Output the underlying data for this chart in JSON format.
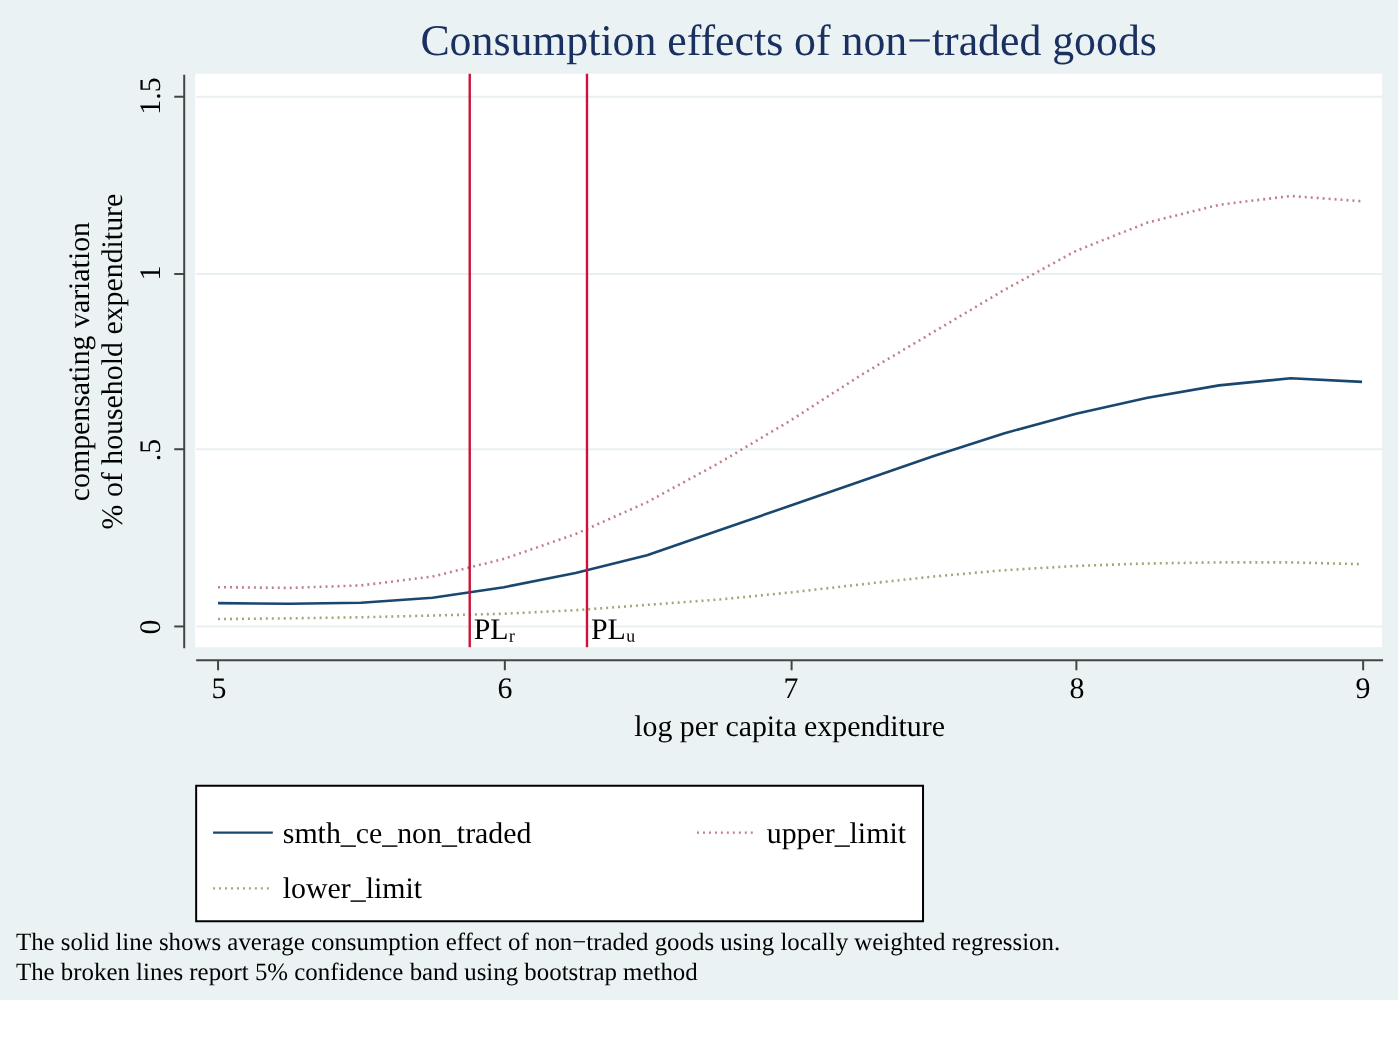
{
  "chart_data": {
    "type": "line",
    "title": "Consumption effects of non−traded goods",
    "xlabel": "log per capita expenditure",
    "ylabel": "compensating variation\n% of household expenditure",
    "xlim": [
      4.92,
      9.07
    ],
    "ylim": [
      -0.06,
      1.56
    ],
    "xticks": [
      5,
      6,
      7,
      8,
      9
    ],
    "yticks": [
      0,
      {
        "value": 0.5,
        "label": ".5"
      },
      1,
      1.5
    ],
    "grid": "y",
    "legend": "bottom",
    "marker": "none",
    "series": [
      {
        "name": "smth_ce_non_traded",
        "color": "#1a476f",
        "line_style": "solid",
        "x": [
          5,
          5.25,
          5.5,
          5.75,
          6,
          6.25,
          6.5,
          6.75,
          7,
          7.25,
          7.5,
          7.75,
          8,
          8.25,
          8.5,
          8.75,
          9
        ],
        "values": [
          0.065,
          0.063,
          0.066,
          0.08,
          0.11,
          0.15,
          0.2,
          0.27,
          0.34,
          0.41,
          0.48,
          0.545,
          0.6,
          0.645,
          0.68,
          0.7,
          0.69
        ]
      },
      {
        "name": "upper_limit",
        "color": "#c0808a",
        "line_style": "dotted",
        "x": [
          5,
          5.25,
          5.5,
          5.75,
          6,
          6.25,
          6.5,
          6.75,
          7,
          7.25,
          7.5,
          7.75,
          8,
          8.25,
          8.5,
          8.75,
          9
        ],
        "values": [
          0.11,
          0.108,
          0.115,
          0.14,
          0.19,
          0.26,
          0.35,
          0.46,
          0.58,
          0.71,
          0.83,
          0.95,
          1.06,
          1.14,
          1.19,
          1.215,
          1.2
        ]
      },
      {
        "name": "lower_limit",
        "color": "#a0a878",
        "line_style": "dotted",
        "x": [
          5,
          5.25,
          5.5,
          5.75,
          6,
          6.25,
          6.5,
          6.75,
          7,
          7.25,
          7.5,
          7.75,
          8,
          8.25,
          8.5,
          8.75,
          9
        ],
        "values": [
          0.02,
          0.022,
          0.025,
          0.03,
          0.035,
          0.045,
          0.06,
          0.075,
          0.095,
          0.118,
          0.14,
          0.158,
          0.17,
          0.177,
          0.18,
          0.18,
          0.175
        ]
      }
    ],
    "ref_lines": [
      {
        "axis": "x",
        "value": 5.88,
        "label": "PLᵣ",
        "color": "#d0103a"
      },
      {
        "axis": "x",
        "value": 6.29,
        "label": "PLᵤ",
        "color": "#d0103a"
      }
    ],
    "annotations": [
      "The solid line shows average consumption effect of non−traded goods using locally weighted regression.",
      "The broken lines report 5% confidence band using bootstrap method"
    ]
  }
}
